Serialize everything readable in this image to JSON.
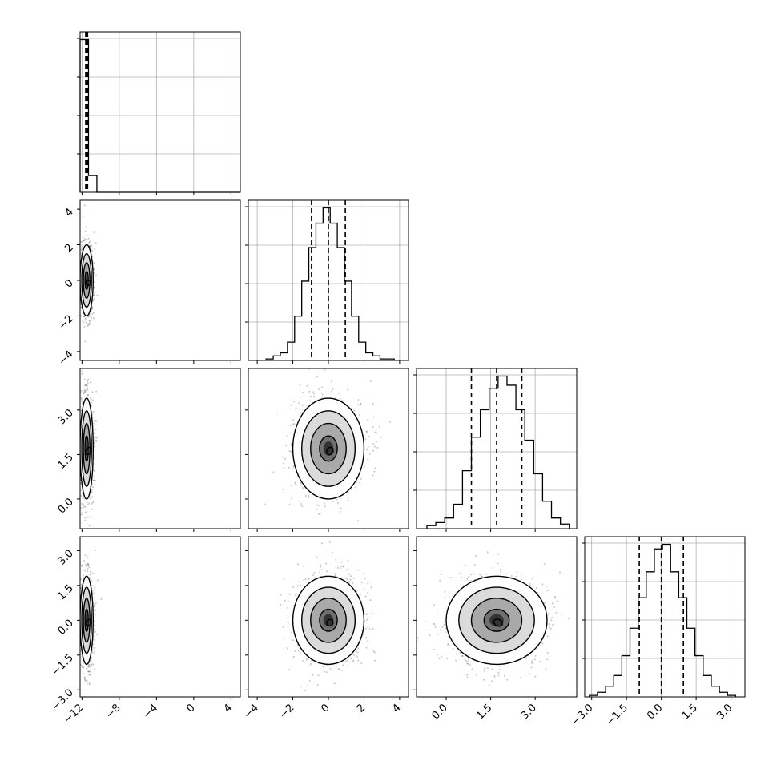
{
  "chart_data": {
    "type": "corner",
    "grid": true,
    "parameters": [
      {
        "index": 0,
        "range": [
          -12.2,
          5.0
        ],
        "ticks": [
          -12,
          -8,
          -4,
          0,
          4
        ],
        "tick_labels": [
          "−12",
          "−8",
          "−4",
          "0",
          "4"
        ],
        "quantiles": [
          -11.6,
          -11.5,
          -11.4
        ],
        "hist": {
          "bins": [
            -12.2,
            -11.3,
            -10.4,
            -9.5,
            -8.6,
            -7.7,
            -6.8,
            -5.9,
            -5.0,
            -4.1,
            -3.2,
            -2.3,
            -1.4,
            -0.5,
            0.4,
            1.3,
            2.2,
            3.1,
            4.0,
            5.0
          ],
          "counts": [
            100,
            11,
            0,
            0,
            0,
            0,
            0,
            0,
            0,
            0,
            0,
            0,
            0,
            0,
            0,
            0,
            0,
            0,
            0
          ]
        }
      },
      {
        "index": 1,
        "range": [
          -4.5,
          4.5
        ],
        "ticks": [
          -4,
          -2,
          0,
          2,
          4
        ],
        "tick_labels": [
          "−4",
          "−2",
          "0",
          "2",
          "4"
        ],
        "quantiles": [
          -0.95,
          0.0,
          0.95
        ],
        "hist": {
          "bins": [
            -3.5,
            -3.1,
            -2.7,
            -2.3,
            -1.9,
            -1.5,
            -1.1,
            -0.7,
            -0.3,
            0.1,
            0.5,
            0.9,
            1.3,
            1.7,
            2.1,
            2.5,
            2.9,
            3.3,
            3.7
          ],
          "counts": [
            1,
            3,
            5,
            12,
            29,
            52,
            74,
            90,
            100,
            90,
            74,
            52,
            29,
            12,
            5,
            3,
            1,
            1
          ]
        }
      },
      {
        "index": 2,
        "range": [
          -1.0,
          4.4
        ],
        "ticks": [
          0.0,
          1.5,
          3.0
        ],
        "tick_labels": [
          "0.0",
          "1.5",
          "3.0"
        ],
        "quantiles": [
          0.85,
          1.7,
          2.55
        ],
        "hist": {
          "bins": [
            -0.65,
            -0.35,
            -0.05,
            0.25,
            0.55,
            0.85,
            1.15,
            1.45,
            1.75,
            2.05,
            2.35,
            2.65,
            2.95,
            3.25,
            3.55,
            3.85,
            4.15
          ],
          "counts": [
            2,
            4,
            7,
            16,
            38,
            60,
            78,
            92,
            100,
            94,
            78,
            58,
            36,
            18,
            7,
            3
          ]
        }
      },
      {
        "index": 3,
        "range": [
          -3.3,
          3.6
        ],
        "ticks": [
          -3.0,
          -1.5,
          0.0,
          1.5,
          3.0
        ],
        "tick_labels": [
          "−3.0",
          "−1.5",
          "0.0",
          "1.5",
          "3.0"
        ],
        "quantiles": [
          -0.95,
          0.0,
          0.95
        ],
        "hist": {
          "bins": [
            -3.1,
            -2.75,
            -2.4,
            -2.05,
            -1.7,
            -1.35,
            -1.0,
            -0.65,
            -0.3,
            0.05,
            0.4,
            0.75,
            1.1,
            1.45,
            1.8,
            2.15,
            2.5,
            2.85,
            3.2
          ],
          "counts": [
            1,
            3,
            7,
            14,
            27,
            45,
            65,
            82,
            97,
            100,
            82,
            65,
            45,
            27,
            14,
            7,
            3,
            1
          ]
        }
      }
    ],
    "pairs": [
      {
        "row": 1,
        "col": 0,
        "center": [
          -11.5,
          0.0
        ],
        "sigma": [
          0.35,
          1.0
        ]
      },
      {
        "row": 2,
        "col": 0,
        "center": [
          -11.5,
          1.7
        ],
        "sigma": [
          0.35,
          0.85
        ]
      },
      {
        "row": 2,
        "col": 1,
        "center": [
          0.0,
          1.7
        ],
        "sigma": [
          1.0,
          0.85
        ]
      },
      {
        "row": 3,
        "col": 0,
        "center": [
          -11.5,
          0.0
        ],
        "sigma": [
          0.35,
          0.95
        ]
      },
      {
        "row": 3,
        "col": 1,
        "center": [
          0.0,
          0.0
        ],
        "sigma": [
          1.0,
          0.95
        ]
      },
      {
        "row": 3,
        "col": 2,
        "center": [
          1.7,
          0.0
        ],
        "sigma": [
          0.85,
          0.95
        ]
      }
    ]
  }
}
